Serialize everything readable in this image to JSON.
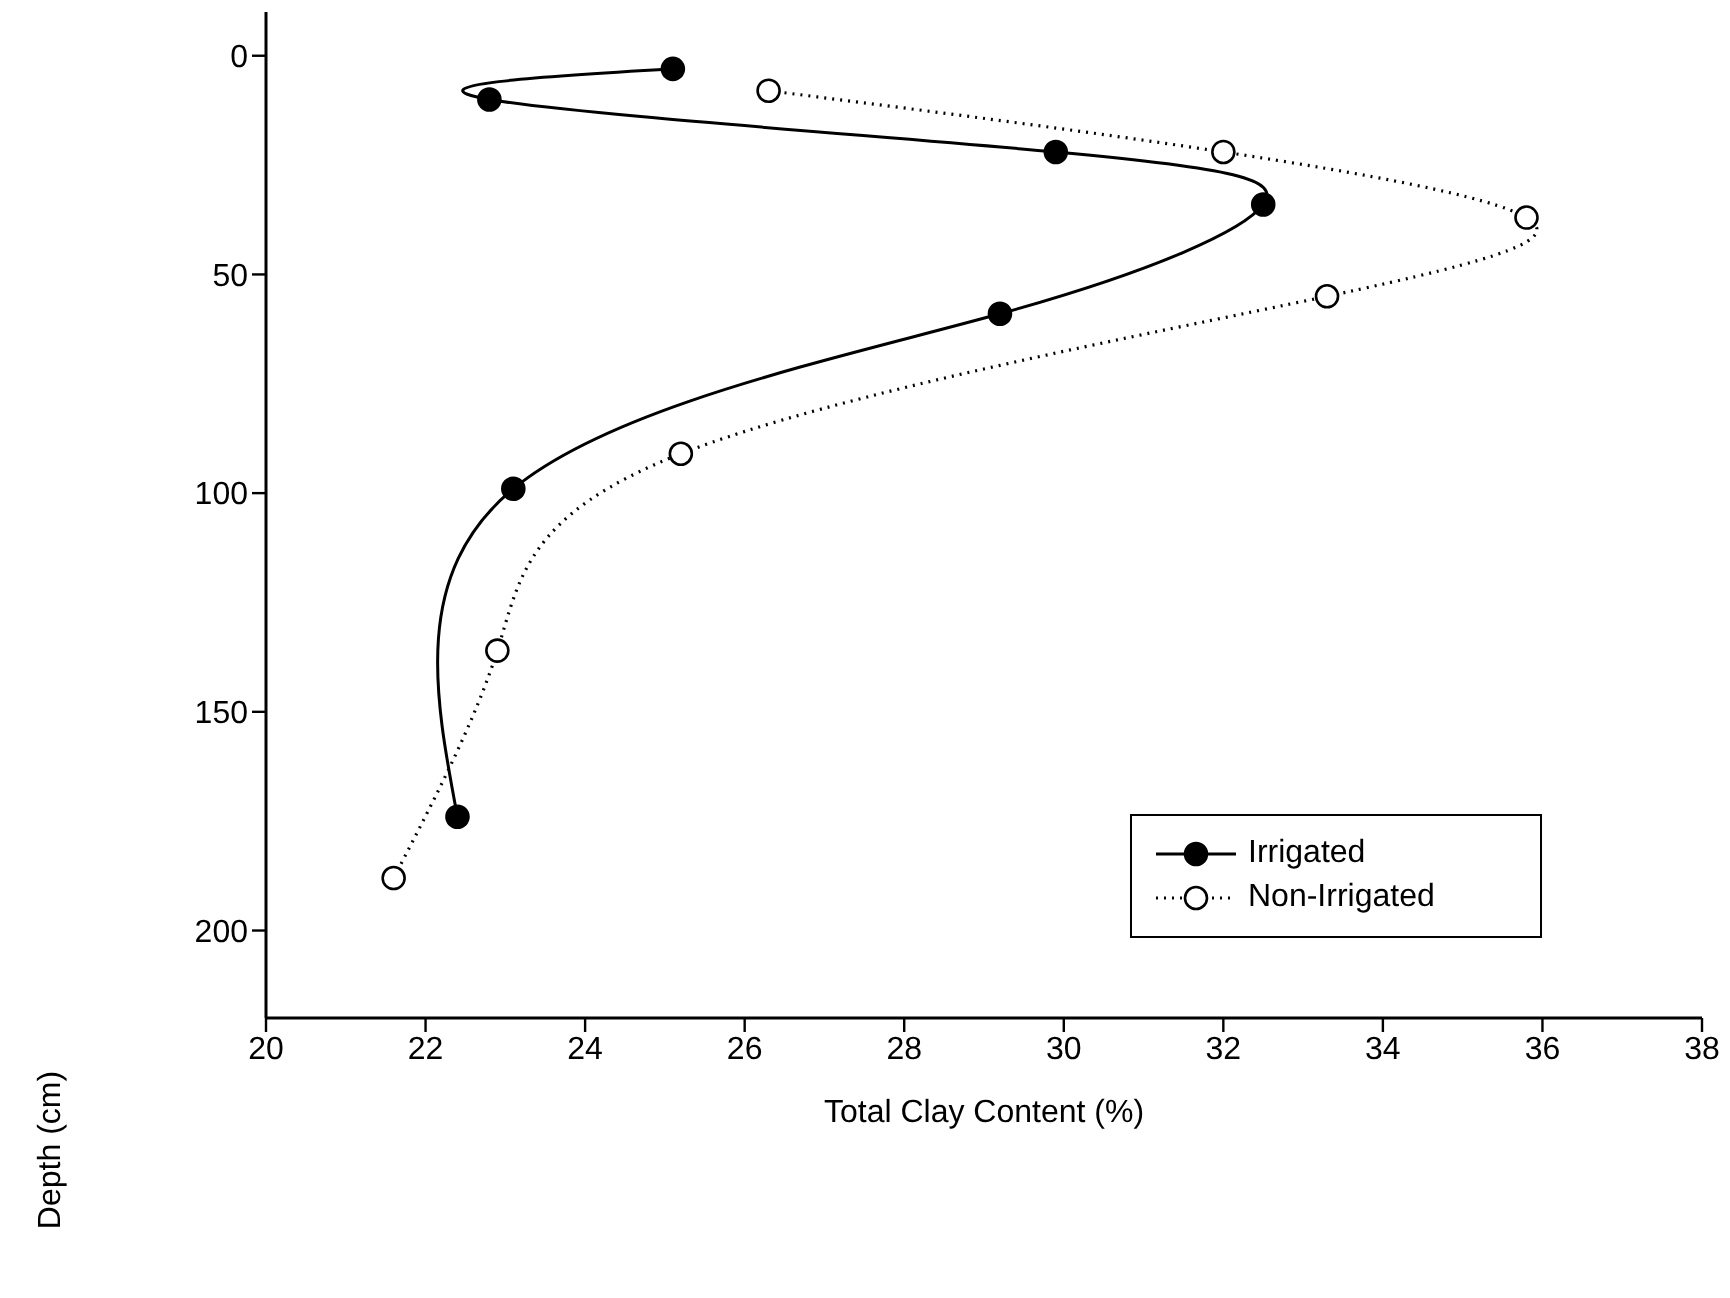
{
  "chart_data": {
    "type": "line",
    "xlabel": "Total Clay Content (%)",
    "ylabel": "Depth (cm)",
    "series": [
      {
        "name": "Irrigated",
        "color": "#000000",
        "line_style": "solid",
        "x": [
          25.1,
          22.8,
          29.9,
          32.5,
          29.2,
          23.1,
          22.4
        ],
        "values": [
          3,
          10,
          22,
          34,
          59,
          99,
          174
        ]
      },
      {
        "name": "Non-Irrigated",
        "color": "#000000",
        "line_style": "dotted",
        "x": [
          26.3,
          32.0,
          35.8,
          33.3,
          25.2,
          22.9,
          21.6
        ],
        "values": [
          8,
          22,
          37,
          55,
          91,
          136,
          188
        ]
      }
    ],
    "xlim": [
      20,
      38
    ],
    "xticks": [
      20,
      22,
      24,
      26,
      28,
      30,
      32,
      34,
      36,
      38
    ],
    "ylim": [
      220,
      -10
    ],
    "yticks": [
      0,
      50,
      100,
      150,
      200
    ],
    "marker": "circle",
    "grid": false,
    "legend": "bottom right"
  }
}
